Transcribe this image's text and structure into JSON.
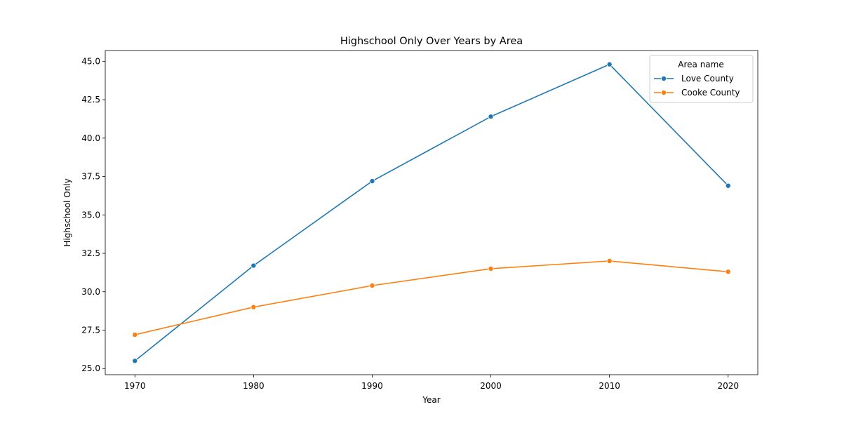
{
  "chart_data": {
    "type": "line",
    "title": "Highschool Only Over Years by Area",
    "xlabel": "Year",
    "ylabel": "Highschool Only",
    "x": [
      1970,
      1980,
      1990,
      2000,
      2010,
      2020
    ],
    "x_tick_labels": [
      "1970",
      "1980",
      "1990",
      "2000",
      "2010",
      "2020"
    ],
    "xlim": [
      1967.5,
      2022.5
    ],
    "ylim": [
      24.6,
      45.7
    ],
    "y_ticks": [
      25.0,
      27.5,
      30.0,
      32.5,
      35.0,
      37.5,
      40.0,
      42.5,
      45.0
    ],
    "y_tick_labels": [
      "25.0",
      "27.5",
      "30.0",
      "32.5",
      "35.0",
      "37.5",
      "40.0",
      "42.5",
      "45.0"
    ],
    "grid": false,
    "legend": {
      "title": "Area name",
      "placement": "top-right"
    },
    "series": [
      {
        "name": "Love County",
        "color": "#1f77b4",
        "values": [
          25.5,
          31.7,
          37.2,
          41.4,
          44.8,
          36.9
        ]
      },
      {
        "name": "Cooke County",
        "color": "#ff7f0e",
        "values": [
          27.2,
          29.0,
          30.4,
          31.5,
          32.0,
          31.3
        ]
      }
    ]
  }
}
